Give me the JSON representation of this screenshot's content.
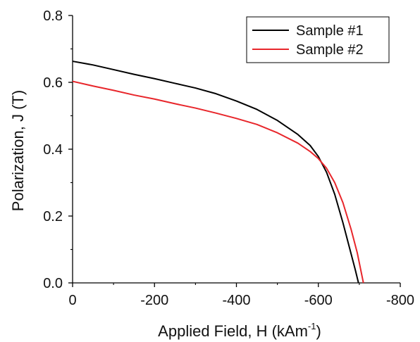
{
  "chart_data": {
    "type": "line",
    "title": "",
    "xlabel": "Applied Field, H (kAm",
    "xlabel_superscript": "-1",
    "xlabel_suffix": ")",
    "ylabel": "Polarization, J (T)",
    "xlim": [
      0,
      -800
    ],
    "ylim": [
      0.0,
      0.8
    ],
    "x_ticks": [
      0,
      -200,
      -400,
      -600,
      -800
    ],
    "x_tick_labels": [
      "0",
      "-200",
      "-400",
      "-600",
      "-800"
    ],
    "y_ticks": [
      0.0,
      0.2,
      0.4,
      0.6,
      0.8
    ],
    "y_tick_labels": [
      "0.0",
      "0.2",
      "0.4",
      "0.6",
      "0.8"
    ],
    "grid": false,
    "legend_position": "top-right",
    "series": [
      {
        "name": "Sample #1",
        "color": "#000000",
        "x": [
          0,
          -50,
          -100,
          -150,
          -200,
          -250,
          -300,
          -350,
          -400,
          -450,
          -500,
          -550,
          -580,
          -600,
          -620,
          -640,
          -660,
          -675,
          -690,
          -698
        ],
        "y": [
          0.663,
          0.652,
          0.638,
          0.624,
          0.611,
          0.597,
          0.583,
          0.566,
          0.544,
          0.519,
          0.486,
          0.444,
          0.411,
          0.378,
          0.331,
          0.265,
          0.18,
          0.11,
          0.04,
          0.0
        ]
      },
      {
        "name": "Sample #2",
        "color": "#e8262b",
        "x": [
          0,
          -50,
          -100,
          -150,
          -200,
          -250,
          -300,
          -350,
          -400,
          -450,
          -500,
          -550,
          -580,
          -600,
          -620,
          -640,
          -660,
          -680,
          -695,
          -710
        ],
        "y": [
          0.603,
          0.589,
          0.576,
          0.562,
          0.55,
          0.536,
          0.523,
          0.508,
          0.492,
          0.474,
          0.449,
          0.418,
          0.393,
          0.372,
          0.343,
          0.3,
          0.24,
          0.16,
          0.09,
          0.0
        ]
      }
    ]
  }
}
